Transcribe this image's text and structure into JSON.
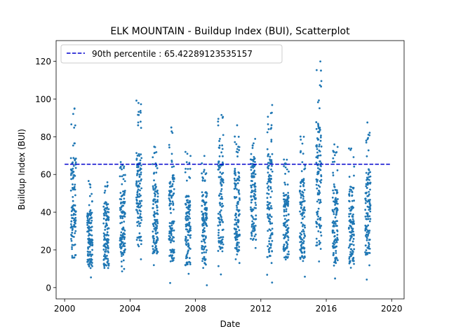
{
  "chart_data": {
    "type": "scatter",
    "title": "ELK MOUNTAIN - Buildup Index (BUI), Scatterplot",
    "xlabel": "Date",
    "ylabel": "Buildup Index (BUI)",
    "xlim": [
      "1999-06-25",
      "2020-10-05"
    ],
    "ylim": [
      -6,
      131
    ],
    "x_ticks": [
      "2000",
      "2004",
      "2008",
      "2012",
      "2016",
      "2020"
    ],
    "y_ticks": [
      0,
      20,
      40,
      60,
      80,
      100,
      120
    ],
    "grid": false,
    "legend_position": "top-left",
    "point_color": "#1f77b4",
    "reference_line": {
      "label": "90th percentile : 65.42289123535157",
      "value": 65.42289123535157,
      "color": "#0000cd",
      "style": "dashed",
      "x_start": "2000-01-01",
      "x_end": "2020-01-01"
    },
    "seasons": [
      {
        "year": 2000,
        "start": "2000-05-20",
        "end": "2000-09-10",
        "min": 1,
        "max": 98
      },
      {
        "year": 2001,
        "start": "2001-05-20",
        "end": "2001-09-15",
        "min": 3,
        "max": 57
      },
      {
        "year": 2002,
        "start": "2002-05-20",
        "end": "2002-09-15",
        "min": 2,
        "max": 64
      },
      {
        "year": 2003,
        "start": "2003-05-20",
        "end": "2003-09-15",
        "min": 7,
        "max": 72
      },
      {
        "year": 2004,
        "start": "2004-05-20",
        "end": "2004-09-15",
        "min": 9,
        "max": 100
      },
      {
        "year": 2005,
        "start": "2005-05-20",
        "end": "2005-09-15",
        "min": 8,
        "max": 75
      },
      {
        "year": 2006,
        "start": "2006-05-20",
        "end": "2006-09-15",
        "min": 1,
        "max": 85
      },
      {
        "year": 2007,
        "start": "2007-05-20",
        "end": "2007-09-15",
        "min": 1,
        "max": 72
      },
      {
        "year": 2008,
        "start": "2008-05-20",
        "end": "2008-09-15",
        "min": 1,
        "max": 72
      },
      {
        "year": 2009,
        "start": "2009-05-20",
        "end": "2009-09-15",
        "min": 6,
        "max": 93
      },
      {
        "year": 2010,
        "start": "2010-05-20",
        "end": "2010-09-15",
        "min": 2,
        "max": 88
      },
      {
        "year": 2011,
        "start": "2011-05-20",
        "end": "2011-09-15",
        "min": 13,
        "max": 94
      },
      {
        "year": 2012,
        "start": "2012-05-20",
        "end": "2012-09-15",
        "min": 1,
        "max": 101
      },
      {
        "year": 2013,
        "start": "2013-05-20",
        "end": "2013-09-15",
        "min": 5,
        "max": 70
      },
      {
        "year": 2014,
        "start": "2014-05-20",
        "end": "2014-09-15",
        "min": 2,
        "max": 81
      },
      {
        "year": 2015,
        "start": "2015-05-20",
        "end": "2015-09-15",
        "min": 2,
        "max": 125
      },
      {
        "year": 2016,
        "start": "2016-05-20",
        "end": "2016-09-15",
        "min": 2,
        "max": 76
      },
      {
        "year": 2017,
        "start": "2017-05-20",
        "end": "2017-09-15",
        "min": 1,
        "max": 76
      },
      {
        "year": 2018,
        "start": "2018-05-20",
        "end": "2018-09-15",
        "min": 4,
        "max": 89
      }
    ]
  }
}
